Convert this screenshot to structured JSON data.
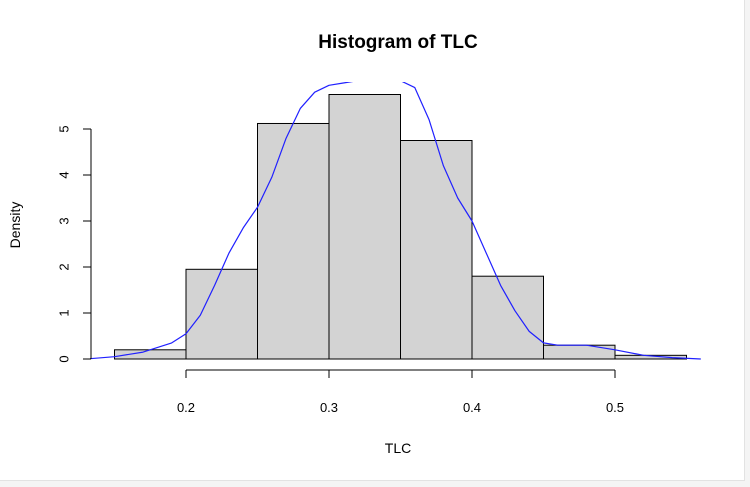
{
  "chart_data": {
    "type": "bar",
    "title": "Histogram of TLC",
    "xlabel": "TLC",
    "ylabel": "Density",
    "bins": [
      {
        "start": 0.15,
        "end": 0.2,
        "density": 0.2
      },
      {
        "start": 0.2,
        "end": 0.25,
        "density": 1.95
      },
      {
        "start": 0.25,
        "end": 0.3,
        "density": 5.12
      },
      {
        "start": 0.3,
        "end": 0.35,
        "density": 5.75
      },
      {
        "start": 0.35,
        "end": 0.4,
        "density": 4.75
      },
      {
        "start": 0.4,
        "end": 0.45,
        "density": 1.8
      },
      {
        "start": 0.45,
        "end": 0.5,
        "density": 0.3
      },
      {
        "start": 0.5,
        "end": 0.55,
        "density": 0.08
      }
    ],
    "x_ticks": [
      0.2,
      0.3,
      0.4,
      0.5
    ],
    "x_tick_labels": [
      "0.2",
      "0.3",
      "0.4",
      "0.5"
    ],
    "y_ticks": [
      0,
      1,
      2,
      3,
      4,
      5
    ],
    "y_tick_labels": [
      "0",
      "1",
      "2",
      "3",
      "4",
      "5"
    ],
    "density_curve": {
      "x": [
        0.13,
        0.15,
        0.17,
        0.19,
        0.2,
        0.21,
        0.22,
        0.23,
        0.24,
        0.25,
        0.26,
        0.27,
        0.28,
        0.29,
        0.3,
        0.31,
        0.32,
        0.35,
        0.36,
        0.37,
        0.38,
        0.39,
        0.4,
        0.41,
        0.42,
        0.43,
        0.44,
        0.45,
        0.46,
        0.48,
        0.5,
        0.52,
        0.54,
        0.56
      ],
      "y": [
        0.0,
        0.05,
        0.15,
        0.35,
        0.55,
        0.95,
        1.6,
        2.3,
        2.85,
        3.3,
        3.95,
        4.8,
        5.45,
        5.8,
        5.95,
        6.0,
        6.05,
        6.05,
        5.9,
        5.2,
        4.2,
        3.5,
        3.0,
        2.3,
        1.6,
        1.05,
        0.6,
        0.35,
        0.3,
        0.3,
        0.2,
        0.08,
        0.03,
        0.0
      ],
      "color": "#2020ff"
    },
    "bar_fill": "#d3d3d3",
    "bar_stroke": "#000000",
    "grid": false
  }
}
